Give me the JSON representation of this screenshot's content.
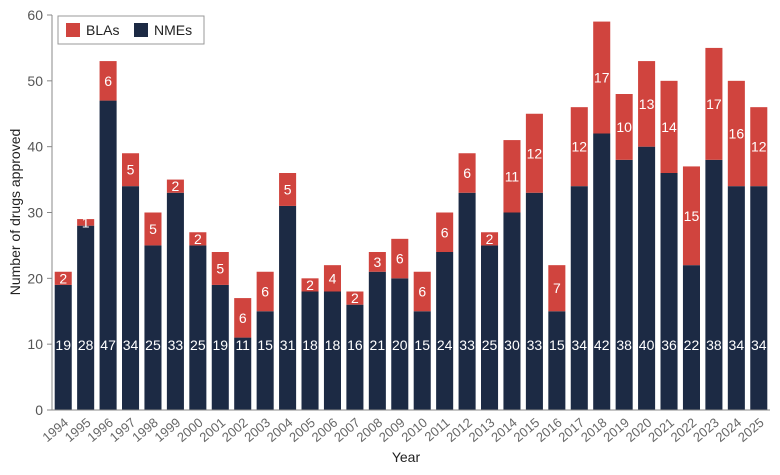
{
  "chart_data": {
    "type": "bar",
    "stacked": true,
    "xlabel": "Year",
    "ylabel": "Number of drugs approved",
    "ylim": [
      0,
      60
    ],
    "yticks": [
      0,
      10,
      20,
      30,
      40,
      50,
      60
    ],
    "grid": false,
    "legend_placement": "top-left",
    "categories": [
      "1994",
      "1995",
      "1996",
      "1997",
      "1998",
      "1999",
      "2000",
      "2001",
      "2002",
      "2003",
      "2004",
      "2005",
      "2006",
      "2007",
      "2008",
      "2009",
      "2010",
      "2011",
      "2012",
      "2013",
      "2014",
      "2015",
      "2016",
      "2017",
      "2018",
      "2019",
      "2020",
      "2021",
      "2022",
      "2023",
      "2024",
      "2025"
    ],
    "series": [
      {
        "name": "NMEs",
        "color": "#1c2a44",
        "values": [
          19,
          28,
          47,
          34,
          25,
          33,
          25,
          19,
          11,
          15,
          31,
          18,
          18,
          16,
          21,
          20,
          15,
          24,
          33,
          25,
          30,
          33,
          15,
          34,
          42,
          38,
          40,
          36,
          22,
          38,
          34,
          34
        ]
      },
      {
        "name": "BLAs",
        "color": "#d0443e",
        "values": [
          2,
          1,
          6,
          5,
          5,
          2,
          2,
          5,
          6,
          6,
          5,
          2,
          4,
          2,
          3,
          6,
          6,
          6,
          6,
          2,
          11,
          12,
          7,
          12,
          17,
          10,
          13,
          14,
          15,
          17,
          16,
          12
        ]
      }
    ],
    "legend": [
      "BLAs",
      "NMEs"
    ]
  }
}
